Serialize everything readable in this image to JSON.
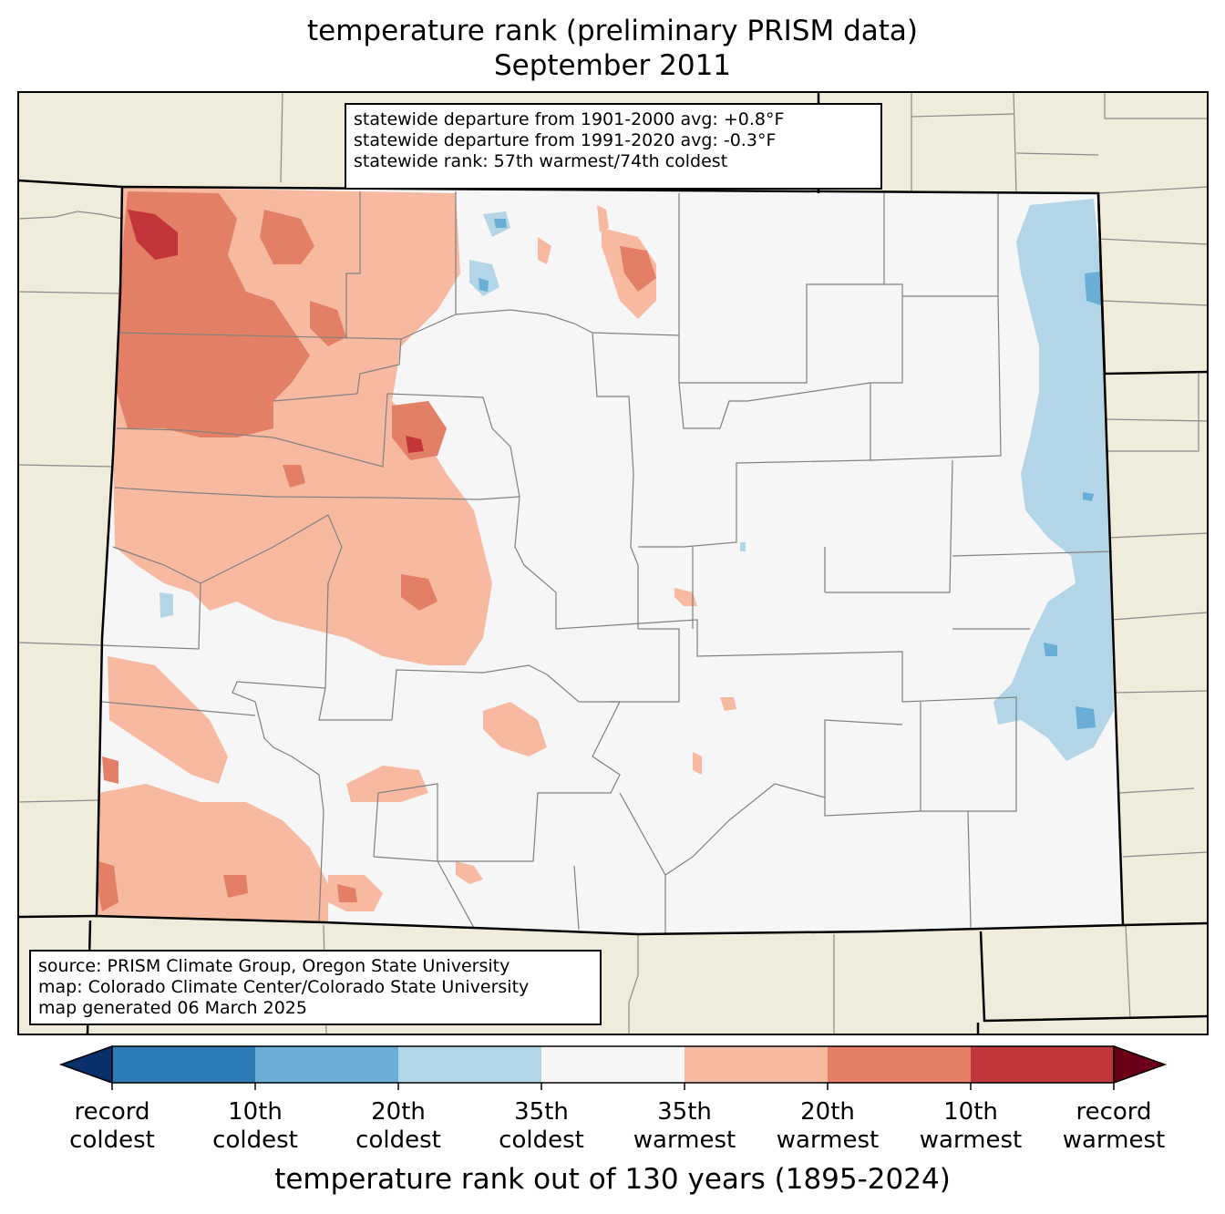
{
  "title": {
    "line1": "temperature rank (preliminary PRISM data)",
    "line2": "September 2011"
  },
  "stats": {
    "line1": "statewide departure from 1901-2000 avg: +0.8°F",
    "line2": "statewide departure from 1991-2020 avg: -0.3°F",
    "line3": "statewide rank: 57th warmest/74th coldest"
  },
  "source": {
    "line1": "source: PRISM Climate Group, Oregon State University",
    "line2": "map: Colorado Climate Center/Colorado State University",
    "line3": "map generated 06 March 2025"
  },
  "colorbar": {
    "title": "temperature rank out of 130 years (1895-2024)",
    "categories": [
      {
        "color": "#08306b",
        "name": "record coldest (extend)"
      },
      {
        "color": "#2c7bb6",
        "name": "10th coldest band"
      },
      {
        "color": "#6aaed6",
        "name": "20th coldest band"
      },
      {
        "color": "#b3d5e8",
        "name": "35th coldest band"
      },
      {
        "color": "#f6f6f6",
        "name": "near normal band"
      },
      {
        "color": "#f7b9a0",
        "name": "35th warmest band"
      },
      {
        "color": "#e27f66",
        "name": "20th warmest band"
      },
      {
        "color": "#c2353a",
        "name": "10th warmest band"
      },
      {
        "color": "#6b0018",
        "name": "record warmest (extend)"
      }
    ],
    "ticks": [
      {
        "line1": "record",
        "line2": "coldest"
      },
      {
        "line1": "10th",
        "line2": "coldest"
      },
      {
        "line1": "20th",
        "line2": "coldest"
      },
      {
        "line1": "35th",
        "line2": "coldest"
      },
      {
        "line1": "35th",
        "line2": "warmest"
      },
      {
        "line1": "20th",
        "line2": "warmest"
      },
      {
        "line1": "10th",
        "line2": "warmest"
      },
      {
        "line1": "record",
        "line2": "warmest"
      }
    ]
  },
  "colors": {
    "land_background": "#efecdc",
    "state_fill": "#f6f6f6",
    "county_lines": "#808080",
    "state_borders": "#000000"
  }
}
